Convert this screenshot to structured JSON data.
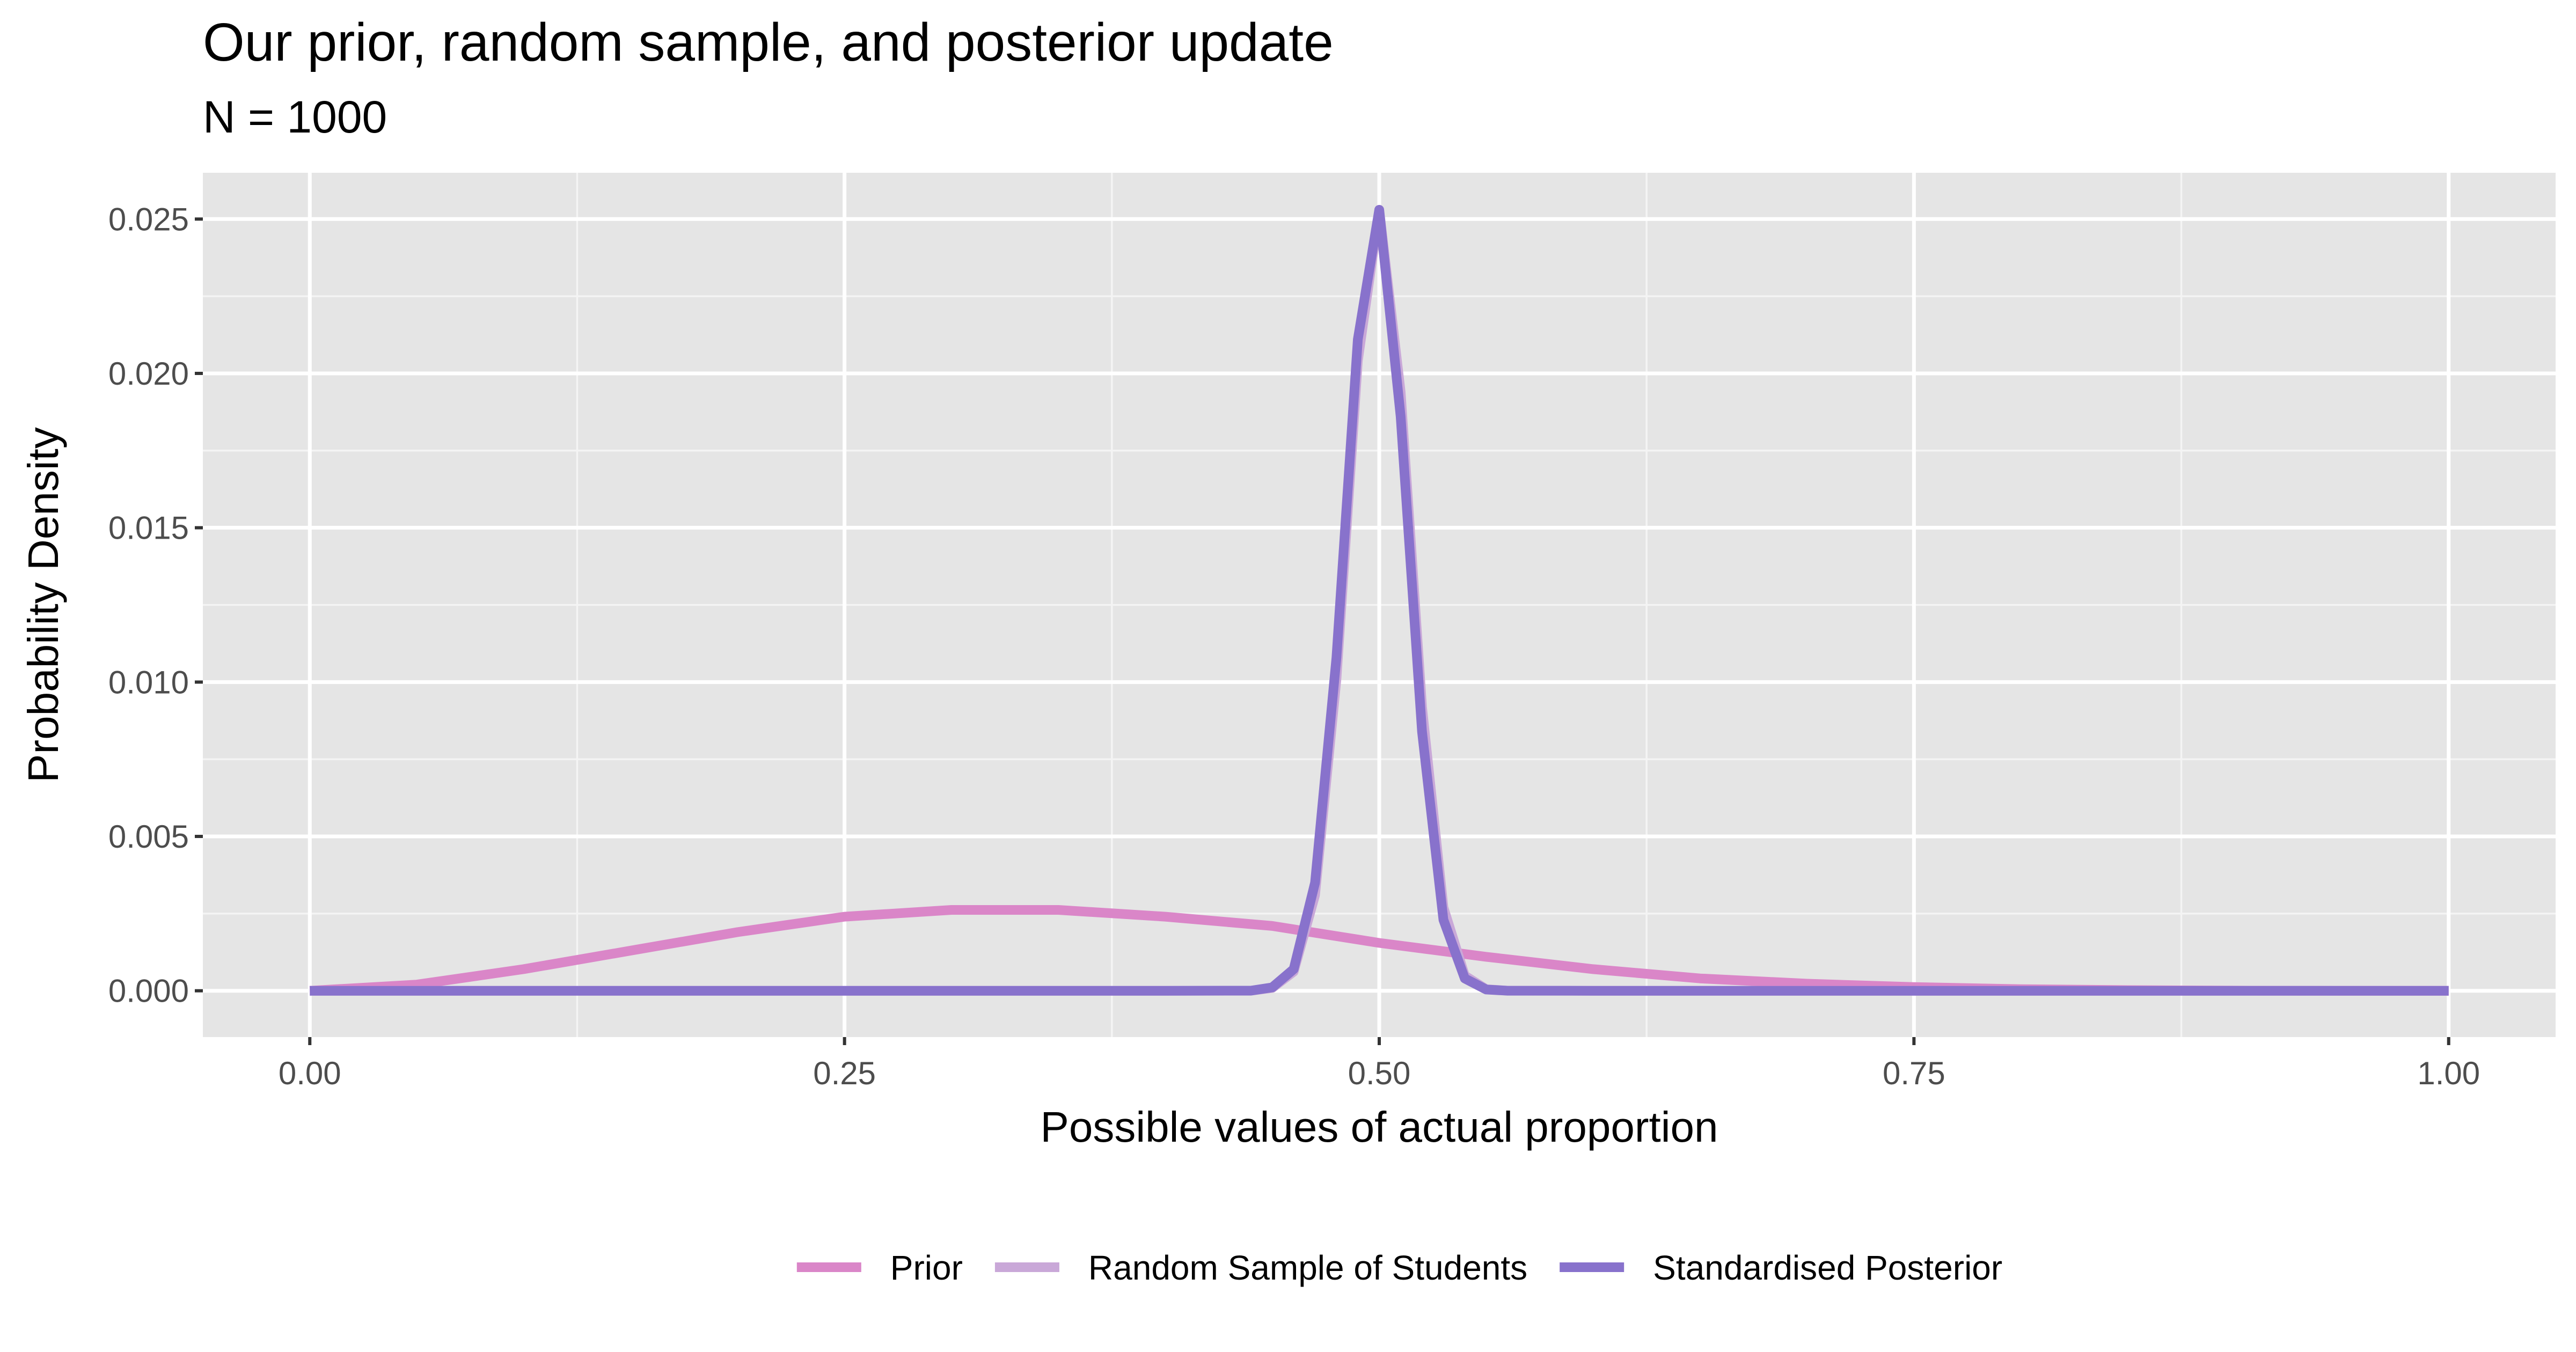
{
  "chart_data": {
    "type": "line",
    "title": "Our prior, random sample, and posterior update",
    "subtitle": "N = 1000",
    "xlabel": "Possible values of actual proportion",
    "ylabel": "Probability Density",
    "xlim": [
      -0.05,
      1.05
    ],
    "ylim": [
      -0.0015,
      0.0265
    ],
    "x_ticks": [
      0,
      0.25,
      0.5,
      0.75,
      1
    ],
    "x_tick_labels": [
      "0.00",
      "0.25",
      "0.50",
      "0.75",
      "1.00"
    ],
    "y_ticks": [
      0,
      0.005,
      0.01,
      0.015,
      0.02,
      0.025
    ],
    "y_tick_labels": [
      "0.000",
      "0.005",
      "0.010",
      "0.015",
      "0.020",
      "0.025"
    ],
    "grid": true,
    "legend_position": "bottom",
    "series": [
      {
        "name": "Prior",
        "color": "#DA86C8",
        "x": [
          0.0,
          0.05,
          0.1,
          0.15,
          0.2,
          0.25,
          0.3,
          0.35,
          0.4,
          0.45,
          0.5,
          0.55,
          0.6,
          0.65,
          0.7,
          0.75,
          0.8,
          0.85,
          0.9,
          0.95,
          1.0
        ],
        "values": [
          0.0,
          0.0002,
          0.0007,
          0.0013,
          0.0019,
          0.0024,
          0.00262,
          0.00262,
          0.0024,
          0.0021,
          0.00155,
          0.0011,
          0.0007,
          0.0004,
          0.00023,
          0.00012,
          5e-05,
          2e-05,
          5e-06,
          0.0,
          0.0
        ]
      },
      {
        "name": "Random Sample of Students",
        "color": "#C9A8D8",
        "x": [
          0.0,
          0.4,
          0.44,
          0.45,
          0.46,
          0.47,
          0.48,
          0.49,
          0.5,
          0.51,
          0.52,
          0.53,
          0.54,
          0.55,
          0.56,
          0.6,
          1.0
        ],
        "values": [
          0.0,
          0.0,
          2e-06,
          9e-05,
          0.00062,
          0.0031,
          0.0101,
          0.0204,
          0.0253,
          0.0194,
          0.0092,
          0.0027,
          0.00049,
          5e-05,
          3e-06,
          0.0,
          0.0
        ]
      },
      {
        "name": "Standardised Posterior",
        "color": "#8872CC",
        "x": [
          0.0,
          0.4,
          0.44,
          0.45,
          0.46,
          0.47,
          0.48,
          0.49,
          0.5,
          0.51,
          0.52,
          0.53,
          0.54,
          0.55,
          0.56,
          0.6,
          1.0
        ],
        "values": [
          0.0,
          0.0,
          3e-06,
          0.00011,
          0.0007,
          0.0035,
          0.0108,
          0.0211,
          0.0253,
          0.0186,
          0.0084,
          0.0023,
          0.0004,
          4e-05,
          2e-06,
          0.0,
          0.0
        ]
      }
    ]
  }
}
